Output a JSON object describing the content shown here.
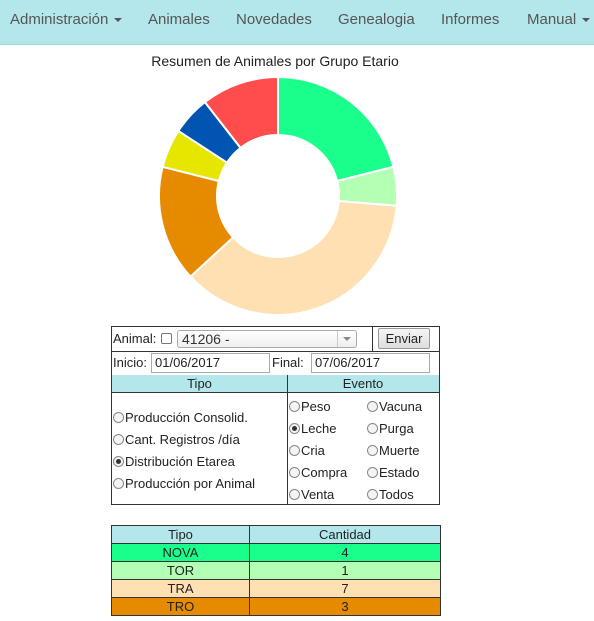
{
  "navbar": {
    "items": [
      {
        "label": "Administración",
        "dropdown": true
      },
      {
        "label": "Animales",
        "dropdown": false
      },
      {
        "label": "Novedades",
        "dropdown": false
      },
      {
        "label": "Genealogia",
        "dropdown": false
      },
      {
        "label": "Informes",
        "dropdown": false
      },
      {
        "label": "Manual",
        "dropdown": true
      }
    ]
  },
  "chart_data": {
    "type": "pie",
    "title": "Resumen de Animales por Grupo Etario",
    "slices": [
      {
        "value": 4,
        "color": "#1aff8c"
      },
      {
        "value": 1,
        "color": "#b3ffb3"
      },
      {
        "value": 7,
        "color": "#ffe0b3"
      },
      {
        "value": 3,
        "color": "#e68a00"
      },
      {
        "value": 1,
        "color": "#e6e600"
      },
      {
        "value": 1,
        "color": "#0055b3"
      },
      {
        "value": 2,
        "color": "#ff4d4d"
      }
    ]
  },
  "form": {
    "animal_label": "Animal:",
    "animal_checked": false,
    "animal_value": "41206 -",
    "submit_label": "Enviar",
    "start_label": "Inicio:",
    "start_value": "01/06/2017",
    "end_label": "Final:",
    "end_value": "07/06/2017",
    "tipo_header": "Tipo",
    "evento_header": "Evento",
    "tipo_options": [
      {
        "label": "Producción Consolid.",
        "selected": false
      },
      {
        "label": "Cant. Registros /día",
        "selected": false
      },
      {
        "label": "Distribución Etarea",
        "selected": true
      },
      {
        "label": "Producción por Animal",
        "selected": false
      }
    ],
    "evento_col1": [
      {
        "label": "Peso",
        "selected": false
      },
      {
        "label": "Leche",
        "selected": true
      },
      {
        "label": "Cria",
        "selected": false
      },
      {
        "label": "Compra",
        "selected": false
      },
      {
        "label": "Venta",
        "selected": false
      }
    ],
    "evento_col2": [
      {
        "label": "Vacuna",
        "selected": false
      },
      {
        "label": "Purga",
        "selected": false
      },
      {
        "label": "Muerte",
        "selected": false
      },
      {
        "label": "Estado",
        "selected": false
      },
      {
        "label": "Todos",
        "selected": false
      }
    ]
  },
  "summary": {
    "headers": [
      "Tipo",
      "Cantidad"
    ],
    "rows": [
      {
        "tipo": "NOVA",
        "cantidad": "4",
        "color": "#1aff8c"
      },
      {
        "tipo": "TOR",
        "cantidad": "1",
        "color": "#b3ffb3"
      },
      {
        "tipo": "TRA",
        "cantidad": "7",
        "color": "#ffe0b3"
      },
      {
        "tipo": "TRO",
        "cantidad": "3",
        "color": "#e68a00"
      }
    ]
  }
}
